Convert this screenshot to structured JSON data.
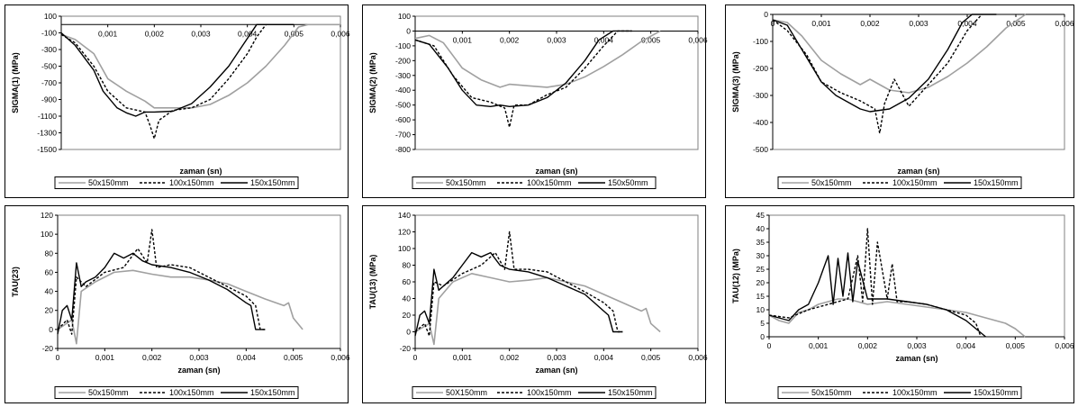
{
  "chart_data": [
    {
      "type": "line",
      "xlabel": "zaman (sn)",
      "ylabel": "SIGMA(1) (MPa)",
      "xlim": [
        0,
        0.006
      ],
      "ylim": [
        -1500,
        100
      ],
      "yticks": [
        100,
        -100,
        -300,
        -500,
        -700,
        -900,
        -1100,
        -1300,
        -1500
      ],
      "xticks": [
        0.001,
        0.002,
        0.003,
        0.004,
        0.005,
        0.006
      ],
      "xtick_labels": [
        "0,001",
        "0,002",
        "0,003",
        "0,004",
        "0,005",
        "0,006"
      ],
      "xaxis_at": 0,
      "ytick_labels": [
        "100",
        "-100",
        "-300",
        "-500",
        "-700",
        "-900",
        "-1100",
        "-1300",
        "-1500"
      ],
      "legend": "bottom",
      "series": [
        {
          "name": "50x150mm",
          "style": "gray",
          "x": [
            0,
            0.0003,
            0.0007,
            0.001,
            0.0014,
            0.0018,
            0.002,
            0.0024,
            0.0028,
            0.0032,
            0.0036,
            0.004,
            0.0044,
            0.0048,
            0.0051,
            0.0053,
            0.006
          ],
          "y": [
            -120,
            -180,
            -350,
            -650,
            -800,
            -920,
            -1000,
            -1000,
            -1000,
            -960,
            -850,
            -700,
            -500,
            -250,
            -30,
            0,
            0
          ]
        },
        {
          "name": "100x150mm",
          "style": "dashed",
          "x": [
            0,
            0.0003,
            0.0007,
            0.001,
            0.0014,
            0.0018,
            0.0019,
            0.002,
            0.0021,
            0.0024,
            0.0028,
            0.0032,
            0.0036,
            0.004,
            0.0042,
            0.0044
          ],
          "y": [
            -120,
            -220,
            -500,
            -800,
            -1000,
            -1050,
            -1200,
            -1370,
            -1150,
            -1030,
            -1000,
            -900,
            -650,
            -350,
            -150,
            0
          ]
        },
        {
          "name": "150x150mm",
          "style": "solid",
          "x": [
            0,
            0.0003,
            0.0007,
            0.0009,
            0.0012,
            0.0014,
            0.0016,
            0.0018,
            0.002,
            0.0024,
            0.0028,
            0.0032,
            0.0036,
            0.0039,
            0.0042,
            0.0044,
            0.005
          ],
          "y": [
            -100,
            -250,
            -550,
            -800,
            -1000,
            -1060,
            -1100,
            -1050,
            -1050,
            -1040,
            -950,
            -750,
            -500,
            -250,
            0,
            0,
            0
          ]
        }
      ]
    },
    {
      "type": "line",
      "xlabel": "zaman (sn)",
      "ylabel": "SIGMA(2) (MPa)",
      "xlim": [
        0,
        0.006
      ],
      "ylim": [
        -800,
        100
      ],
      "yticks": [
        100,
        0,
        -100,
        -200,
        -300,
        -400,
        -500,
        -600,
        -700,
        -800
      ],
      "xticks": [
        0.001,
        0.002,
        0.003,
        0.004,
        0.005,
        0.006
      ],
      "xtick_labels": [
        "0,001",
        "0,002",
        "0,003",
        "0,004",
        "0,005",
        "0,006"
      ],
      "xaxis_at": 0,
      "ytick_labels": [
        "100",
        "0",
        "-100",
        "-200",
        "-300",
        "-400",
        "-500",
        "-600",
        "-700",
        "-800"
      ],
      "legend": "bottom",
      "series": [
        {
          "name": "50x150mm",
          "style": "gray",
          "x": [
            0,
            0.0003,
            0.0006,
            0.001,
            0.0014,
            0.0018,
            0.002,
            0.0024,
            0.0028,
            0.0032,
            0.0036,
            0.004,
            0.0044,
            0.0048,
            0.0052
          ],
          "y": [
            -50,
            -30,
            -80,
            -250,
            -330,
            -380,
            -360,
            -370,
            -380,
            -360,
            -310,
            -240,
            -160,
            -70,
            0
          ]
        },
        {
          "name": "100x150mm",
          "style": "dashed",
          "x": [
            0,
            0.0004,
            0.0008,
            0.0012,
            0.0016,
            0.0019,
            0.002,
            0.0021,
            0.0024,
            0.0028,
            0.0032,
            0.0036,
            0.004,
            0.0043,
            0.0046
          ],
          "y": [
            -60,
            -100,
            -300,
            -450,
            -480,
            -520,
            -650,
            -500,
            -500,
            -430,
            -380,
            -250,
            -100,
            0,
            0
          ]
        },
        {
          "name": "150x50mm",
          "style": "solid",
          "x": [
            0,
            0.0003,
            0.0007,
            0.001,
            0.0013,
            0.0016,
            0.0018,
            0.002,
            0.0024,
            0.0028,
            0.0032,
            0.0036,
            0.0039,
            0.0042,
            0.0046
          ],
          "y": [
            -60,
            -90,
            -250,
            -400,
            -500,
            -510,
            -500,
            -510,
            -500,
            -450,
            -350,
            -200,
            -60,
            0,
            0
          ]
        }
      ]
    },
    {
      "type": "line",
      "xlabel": "zaman (sn)",
      "ylabel": "SIGMA(3) (MPa)",
      "xlim": [
        0,
        0.006
      ],
      "ylim": [
        -500,
        0
      ],
      "yticks": [
        0,
        -100,
        -200,
        -300,
        -400,
        -500
      ],
      "xticks": [
        0,
        0.001,
        0.002,
        0.003,
        0.004,
        0.005,
        0.006
      ],
      "xtick_labels": [
        "0",
        "0,001",
        "0,002",
        "0,003",
        "0,004",
        "0,005",
        "0,006"
      ],
      "xaxis_at": 0,
      "ytick_labels": [
        "0",
        "-100",
        "-200",
        "-300",
        "-400",
        "-500"
      ],
      "legend": "bottom",
      "series": [
        {
          "name": "50x150mm",
          "style": "gray",
          "x": [
            0,
            0.0003,
            0.0006,
            0.001,
            0.0014,
            0.0018,
            0.002,
            0.0024,
            0.0028,
            0.0032,
            0.0036,
            0.004,
            0.0044,
            0.0048,
            0.0052
          ],
          "y": [
            -20,
            -30,
            -80,
            -170,
            -220,
            -260,
            -240,
            -280,
            -290,
            -270,
            -230,
            -180,
            -120,
            -50,
            0
          ]
        },
        {
          "name": "100x150mm",
          "style": "dashed",
          "x": [
            0,
            0.0003,
            0.0007,
            0.001,
            0.0014,
            0.0018,
            0.0021,
            0.0022,
            0.0023,
            0.0025,
            0.0028,
            0.0032,
            0.0036,
            0.004,
            0.0043
          ],
          "y": [
            -20,
            -60,
            -150,
            -250,
            -290,
            -320,
            -350,
            -440,
            -330,
            -240,
            -340,
            -260,
            -180,
            -60,
            0
          ]
        },
        {
          "name": "150x150mm",
          "style": "solid",
          "x": [
            0,
            0.0003,
            0.0006,
            0.001,
            0.0013,
            0.0016,
            0.0018,
            0.002,
            0.0024,
            0.0028,
            0.0032,
            0.0036,
            0.0039,
            0.0041,
            0.0046
          ],
          "y": [
            -20,
            -40,
            -130,
            -250,
            -300,
            -330,
            -350,
            -360,
            -350,
            -310,
            -240,
            -130,
            -30,
            0,
            0
          ]
        }
      ]
    },
    {
      "type": "line",
      "xlabel": "zaman (sn)",
      "ylabel": "TAU(23)",
      "xlim": [
        0,
        0.006
      ],
      "ylim": [
        -20,
        120
      ],
      "yticks": [
        120,
        100,
        80,
        60,
        40,
        20,
        0,
        -20
      ],
      "xticks": [
        0,
        0.001,
        0.002,
        0.003,
        0.004,
        0.005,
        0.006
      ],
      "xtick_labels": [
        "0",
        "0,001",
        "0,002",
        "0,003",
        "0,004",
        "0,005",
        "0,006"
      ],
      "xaxis_at": -20,
      "ytick_labels": [
        "120",
        "100",
        "80",
        "60",
        "40",
        "20",
        "0",
        "-20"
      ],
      "legend": "bottom",
      "series": [
        {
          "name": "50x150mm",
          "style": "gray",
          "x": [
            0,
            0.0003,
            0.0004,
            0.0005,
            0.0008,
            0.0012,
            0.0016,
            0.002,
            0.0024,
            0.0028,
            0.0032,
            0.0036,
            0.004,
            0.0044,
            0.0048,
            0.0049,
            0.005,
            0.0052
          ],
          "y": [
            0,
            10,
            -15,
            40,
            50,
            60,
            62,
            58,
            55,
            55,
            52,
            48,
            40,
            32,
            25,
            28,
            12,
            0
          ]
        },
        {
          "name": "100x150mm",
          "style": "dashed",
          "x": [
            0,
            0.0002,
            0.0003,
            0.0004,
            0.0006,
            0.001,
            0.0014,
            0.0017,
            0.0019,
            0.002,
            0.0021,
            0.0024,
            0.0028,
            0.0032,
            0.0036,
            0.004,
            0.0042,
            0.0043,
            0.0044
          ],
          "y": [
            0,
            10,
            -5,
            55,
            45,
            60,
            65,
            85,
            70,
            105,
            65,
            68,
            65,
            55,
            45,
            35,
            25,
            0,
            0
          ]
        },
        {
          "name": "150x150mm",
          "style": "solid",
          "x": [
            0,
            0.0001,
            0.0002,
            0.0003,
            0.0004,
            0.0005,
            0.0006,
            0.0008,
            0.001,
            0.0012,
            0.0014,
            0.0016,
            0.0018,
            0.002,
            0.0024,
            0.0028,
            0.0032,
            0.0036,
            0.0038,
            0.004,
            0.0041,
            0.0042,
            0.0044
          ],
          "y": [
            -5,
            20,
            25,
            10,
            70,
            45,
            50,
            55,
            65,
            80,
            75,
            80,
            72,
            68,
            65,
            60,
            52,
            42,
            35,
            28,
            25,
            0,
            0
          ]
        }
      ]
    },
    {
      "type": "line",
      "xlabel": "zaman (sn)",
      "ylabel": "TAU(13) (MPa)",
      "xlim": [
        0,
        0.006
      ],
      "ylim": [
        -20,
        140
      ],
      "yticks": [
        140,
        120,
        100,
        80,
        60,
        40,
        20,
        0,
        -20
      ],
      "xticks": [
        0,
        0.001,
        0.002,
        0.003,
        0.004,
        0.005,
        0.006
      ],
      "xtick_labels": [
        "0",
        "0,001",
        "0,002",
        "0,003",
        "0,004",
        "0,005",
        "0,006"
      ],
      "xaxis_at": -20,
      "ytick_labels": [
        "140",
        "120",
        "100",
        "80",
        "60",
        "40",
        "20",
        "0",
        "-20"
      ],
      "legend": "bottom",
      "series": [
        {
          "name": "50X150mm",
          "style": "gray",
          "x": [
            0,
            0.0003,
            0.0004,
            0.0005,
            0.0008,
            0.0012,
            0.0016,
            0.002,
            0.0024,
            0.0028,
            0.0032,
            0.0036,
            0.004,
            0.0044,
            0.0048,
            0.0049,
            0.005,
            0.0052
          ],
          "y": [
            0,
            10,
            -15,
            40,
            60,
            70,
            65,
            60,
            62,
            65,
            60,
            55,
            45,
            35,
            25,
            28,
            10,
            0
          ]
        },
        {
          "name": "100x150mm",
          "style": "dashed",
          "x": [
            0,
            0.0002,
            0.0003,
            0.0004,
            0.0006,
            0.001,
            0.0014,
            0.0017,
            0.0019,
            0.002,
            0.0021,
            0.0024,
            0.0028,
            0.0032,
            0.0036,
            0.004,
            0.0042,
            0.0043,
            0.0044
          ],
          "y": [
            0,
            10,
            -5,
            60,
            55,
            70,
            80,
            95,
            75,
            120,
            75,
            75,
            72,
            60,
            48,
            35,
            25,
            0,
            0
          ]
        },
        {
          "name": "150x150mm",
          "style": "solid",
          "x": [
            0,
            0.0001,
            0.0002,
            0.0003,
            0.0004,
            0.0005,
            0.0006,
            0.0008,
            0.001,
            0.0012,
            0.0014,
            0.0016,
            0.0018,
            0.002,
            0.0024,
            0.0028,
            0.0032,
            0.0036,
            0.0038,
            0.004,
            0.0041,
            0.0042,
            0.0044
          ],
          "y": [
            -5,
            20,
            25,
            10,
            75,
            50,
            55,
            65,
            80,
            95,
            90,
            95,
            80,
            75,
            72,
            65,
            55,
            45,
            35,
            25,
            20,
            0,
            0
          ]
        }
      ]
    },
    {
      "type": "line",
      "xlabel": "zaman (sn)",
      "ylabel": "TAU(12) (MPa)",
      "xlim": [
        0,
        0.006
      ],
      "ylim": [
        0,
        45
      ],
      "yticks": [
        45,
        40,
        35,
        30,
        25,
        20,
        15,
        10,
        5,
        0
      ],
      "xticks": [
        0,
        0.001,
        0.002,
        0.003,
        0.004,
        0.005,
        0.006
      ],
      "xtick_labels": [
        "0",
        "0,001",
        "0,002",
        "0,003",
        "0,004",
        "0,005",
        "0,006"
      ],
      "xaxis_at": 0,
      "ytick_labels": [
        "45",
        "40",
        "35",
        "30",
        "25",
        "20",
        "15",
        "10",
        "5",
        "0"
      ],
      "legend": "bottom",
      "series": [
        {
          "name": "50x150mm",
          "style": "gray",
          "x": [
            0,
            0.0002,
            0.0004,
            0.0006,
            0.0008,
            0.001,
            0.0012,
            0.0014,
            0.0016,
            0.0018,
            0.002,
            0.0024,
            0.0028,
            0.0032,
            0.0036,
            0.004,
            0.0044,
            0.0048,
            0.005,
            0.0052
          ],
          "y": [
            8,
            6,
            5,
            9,
            10,
            12,
            13,
            14,
            14,
            13,
            12,
            13,
            12,
            11,
            10,
            9,
            7,
            5,
            3,
            0
          ]
        },
        {
          "name": "100x150mm",
          "style": "dashed",
          "x": [
            0,
            0.0004,
            0.0008,
            0.0012,
            0.0016,
            0.0018,
            0.0019,
            0.002,
            0.0021,
            0.0022,
            0.0024,
            0.0025,
            0.0026,
            0.0028,
            0.0032,
            0.0036,
            0.004,
            0.0042,
            0.0043
          ],
          "y": [
            8,
            7,
            10,
            12,
            14,
            30,
            13,
            40,
            12,
            35,
            14,
            27,
            13,
            13,
            12,
            10,
            8,
            5,
            0
          ]
        },
        {
          "name": "150x150mm",
          "style": "solid",
          "x": [
            0,
            0.0002,
            0.0004,
            0.0006,
            0.0008,
            0.001,
            0.0011,
            0.0012,
            0.0013,
            0.0014,
            0.0015,
            0.0016,
            0.0017,
            0.0018,
            0.002,
            0.0024,
            0.0028,
            0.0032,
            0.0036,
            0.004,
            0.0042,
            0.0044
          ],
          "y": [
            8,
            7,
            6,
            10,
            12,
            20,
            25,
            30,
            12,
            29,
            15,
            31,
            13,
            28,
            14,
            14,
            13,
            12,
            10,
            6,
            3,
            0
          ]
        }
      ]
    }
  ]
}
